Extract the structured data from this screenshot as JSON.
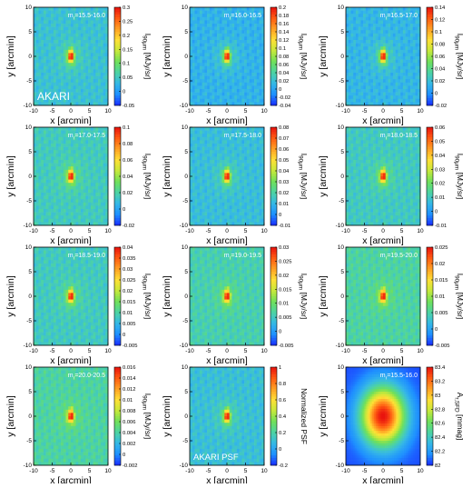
{
  "colormap": [
    "#1a2cff",
    "#1e90ff",
    "#35b8e6",
    "#4cd3a4",
    "#6fe05a",
    "#c6e83a",
    "#ffe036",
    "#ffa024",
    "#ff5a12",
    "#e8120e"
  ],
  "chart_data": [
    {
      "type": "heatmap",
      "title": "m_r=15.5-16.0",
      "note": "AKARI",
      "xlabel": "x [arcmin]",
      "ylabel": "y [arcmin]",
      "xlim": [
        -10,
        10
      ],
      "ylim": [
        -10,
        10
      ],
      "x_ticks": [
        "-10",
        "-5",
        "0",
        "5",
        "10"
      ],
      "y_ticks": [
        "-10",
        "-5",
        "0",
        "5",
        "10"
      ],
      "colorbar": {
        "label": "I_90μm [MJy/sr]",
        "range": [
          -0.05,
          0.3
        ],
        "ticks": [
          "0.3",
          "0.25",
          "0.2",
          "0.15",
          "0.1",
          "0.05",
          "0",
          "-0.05"
        ]
      },
      "background_level": 0.04,
      "peak": 0.3,
      "source_position": [
        0,
        0
      ]
    },
    {
      "type": "heatmap",
      "title": "m_r=16.0-16.5",
      "note": "",
      "xlabel": "x [arcmin]",
      "ylabel": "y [arcmin]",
      "xlim": [
        -10,
        10
      ],
      "ylim": [
        -10,
        10
      ],
      "x_ticks": [
        "-10",
        "-5",
        "0",
        "5",
        "10"
      ],
      "y_ticks": [
        "-10",
        "-5",
        "0",
        "5",
        "10"
      ],
      "colorbar": {
        "label": "I_90μm [MJy/sr]",
        "range": [
          -0.04,
          0.2
        ],
        "ticks": [
          "0.2",
          "0.18",
          "0.16",
          "0.14",
          "0.12",
          "0.1",
          "0.08",
          "0.06",
          "0.04",
          "0.02",
          "0",
          "-0.02",
          "-0.04"
        ]
      },
      "background_level": 0.01,
      "peak": 0.2,
      "source_position": [
        0,
        0
      ]
    },
    {
      "type": "heatmap",
      "title": "m_r=16.5-17.0",
      "note": "",
      "xlabel": "x [arcmin]",
      "ylabel": "y [arcmin]",
      "xlim": [
        -10,
        10
      ],
      "ylim": [
        -10,
        10
      ],
      "x_ticks": [
        "-10",
        "-5",
        "0",
        "5",
        "10"
      ],
      "y_ticks": [
        "-10",
        "-5",
        "0",
        "5",
        "10"
      ],
      "colorbar": {
        "label": "I_90μm [MJy/sr]",
        "range": [
          -0.02,
          0.14
        ],
        "ticks": [
          "0.14",
          "0.12",
          "0.1",
          "0.08",
          "0.06",
          "0.04",
          "0.02",
          "0",
          "-0.02"
        ]
      },
      "background_level": 0.015,
      "peak": 0.14,
      "source_position": [
        0,
        0
      ]
    },
    {
      "type": "heatmap",
      "title": "m_r=17.0-17.5",
      "note": "",
      "xlabel": "x [arcmin]",
      "ylabel": "y [arcmin]",
      "xlim": [
        -10,
        10
      ],
      "ylim": [
        -10,
        10
      ],
      "x_ticks": [
        "-10",
        "-5",
        "0",
        "5",
        "10"
      ],
      "y_ticks": [
        "-10",
        "-5",
        "0",
        "5",
        "10"
      ],
      "colorbar": {
        "label": "I_90μm [MJy/sr]",
        "range": [
          -0.02,
          0.1
        ],
        "ticks": [
          "0.1",
          "0.08",
          "0.06",
          "0.04",
          "0.02",
          "0",
          "-0.02"
        ]
      },
      "background_level": 0.015,
      "peak": 0.1,
      "source_position": [
        0,
        0
      ]
    },
    {
      "type": "heatmap",
      "title": "m_r=17.5-18.0",
      "note": "",
      "xlabel": "x [arcmin]",
      "ylabel": "y [arcmin]",
      "xlim": [
        -10,
        10
      ],
      "ylim": [
        -10,
        10
      ],
      "x_ticks": [
        "-10",
        "-5",
        "0",
        "5",
        "10"
      ],
      "y_ticks": [
        "-10",
        "-5",
        "0",
        "5",
        "10"
      ],
      "colorbar": {
        "label": "I_90μm [MJy/sr]",
        "range": [
          -0.01,
          0.08
        ],
        "ticks": [
          "0.08",
          "0.07",
          "0.06",
          "0.05",
          "0.04",
          "0.03",
          "0.02",
          "0.01",
          "0",
          "-0.01"
        ]
      },
      "background_level": 0.012,
      "peak": 0.08,
      "source_position": [
        0,
        0
      ]
    },
    {
      "type": "heatmap",
      "title": "m_r=18.0-18.5",
      "note": "",
      "xlabel": "x [arcmin]",
      "ylabel": "y [arcmin]",
      "xlim": [
        -10,
        10
      ],
      "ylim": [
        -10,
        10
      ],
      "x_ticks": [
        "-10",
        "-5",
        "0",
        "5",
        "10"
      ],
      "y_ticks": [
        "-10",
        "-5",
        "0",
        "5",
        "10"
      ],
      "colorbar": {
        "label": "I_90μm [MJy/sr]",
        "range": [
          -0.01,
          0.06
        ],
        "ticks": [
          "0.06",
          "0.05",
          "0.04",
          "0.03",
          "0.02",
          "0.01",
          "0",
          "-0.01"
        ]
      },
      "background_level": 0.01,
      "peak": 0.06,
      "source_position": [
        0,
        0
      ]
    },
    {
      "type": "heatmap",
      "title": "m_r=18.5-19.0",
      "note": "",
      "xlabel": "x [arcmin]",
      "ylabel": "y [arcmin]",
      "xlim": [
        -10,
        10
      ],
      "ylim": [
        -10,
        10
      ],
      "x_ticks": [
        "-10",
        "-5",
        "0",
        "5",
        "10"
      ],
      "y_ticks": [
        "-10",
        "-5",
        "0",
        "5",
        "10"
      ],
      "colorbar": {
        "label": "I_90μm [MJy/sr]",
        "range": [
          -0.005,
          0.04
        ],
        "ticks": [
          "0.04",
          "0.035",
          "0.03",
          "0.025",
          "0.02",
          "0.015",
          "0.01",
          "0.005",
          "0",
          "-0.005"
        ]
      },
      "background_level": 0.008,
      "peak": 0.04,
      "source_position": [
        0,
        0
      ]
    },
    {
      "type": "heatmap",
      "title": "m_r=19.0-19.5",
      "note": "",
      "xlabel": "x [arcmin]",
      "ylabel": "y [arcmin]",
      "xlim": [
        -10,
        10
      ],
      "ylim": [
        -10,
        10
      ],
      "x_ticks": [
        "-10",
        "-5",
        "0",
        "5",
        "10"
      ],
      "y_ticks": [
        "-10",
        "-5",
        "0",
        "5",
        "10"
      ],
      "colorbar": {
        "label": "I_90μm [MJy/sr]",
        "range": [
          -0.005,
          0.03
        ],
        "ticks": [
          "0.03",
          "0.025",
          "0.02",
          "0.015",
          "0.01",
          "0.005",
          "0",
          "-0.005"
        ]
      },
      "background_level": 0.006,
      "peak": 0.03,
      "source_position": [
        0,
        0
      ]
    },
    {
      "type": "heatmap",
      "title": "m_r=19.5-20.0",
      "note": "",
      "xlabel": "x [arcmin]",
      "ylabel": "y [arcmin]",
      "xlim": [
        -10,
        10
      ],
      "ylim": [
        -10,
        10
      ],
      "x_ticks": [
        "-10",
        "-5",
        "0",
        "5",
        "10"
      ],
      "y_ticks": [
        "-10",
        "-5",
        "0",
        "5",
        "10"
      ],
      "colorbar": {
        "label": "I_90μm [MJy/sr]",
        "range": [
          -0.005,
          0.025
        ],
        "ticks": [
          "0.025",
          "0.02",
          "0.015",
          "0.01",
          "0.005",
          "0",
          "-0.005"
        ]
      },
      "background_level": 0.005,
      "peak": 0.025,
      "source_position": [
        0,
        0
      ]
    },
    {
      "type": "heatmap",
      "title": "m_r=20.0-20.5",
      "note": "",
      "xlabel": "x [arcmin]",
      "ylabel": "y [arcmin]",
      "xlim": [
        -10,
        10
      ],
      "ylim": [
        -10,
        10
      ],
      "x_ticks": [
        "-10",
        "-5",
        "0",
        "5",
        "10"
      ],
      "y_ticks": [
        "-10",
        "-5",
        "0",
        "5",
        "10"
      ],
      "colorbar": {
        "label": "I_90μm [MJy/sr]",
        "range": [
          -0.002,
          0.016
        ],
        "ticks": [
          "0.016",
          "0.014",
          "0.012",
          "0.01",
          "0.008",
          "0.006",
          "0.004",
          "0.002",
          "0",
          "-0.002"
        ]
      },
      "background_level": 0.004,
      "peak": 0.016,
      "source_position": [
        0,
        0
      ]
    },
    {
      "type": "heatmap",
      "title": "",
      "note": "AKARI PSF",
      "xlabel": "x [arcmin]",
      "ylabel": "y [arcmin]",
      "xlim": [
        -10,
        10
      ],
      "ylim": [
        -10,
        10
      ],
      "x_ticks": [
        "-10",
        "-5",
        "0",
        "5",
        "10"
      ],
      "y_ticks": [
        "-10",
        "-5",
        "0",
        "5",
        "10"
      ],
      "colorbar": {
        "label": "Normalized PSF",
        "range": [
          -0.2,
          1
        ],
        "ticks": [
          "1",
          "0.8",
          "0.6",
          "0.4",
          "0.2",
          "0",
          "-0.2"
        ]
      },
      "background_level": 0.1,
      "peak": 1,
      "source_position": [
        0,
        0
      ]
    },
    {
      "type": "heatmap",
      "title": "m_r=15.5-16.0",
      "note": "",
      "xlabel": "x [arcmin]",
      "ylabel": "y [arcmin]",
      "xlim": [
        -10,
        10
      ],
      "ylim": [
        -10,
        10
      ],
      "x_ticks": [
        "-10",
        "-5",
        "0",
        "5",
        "10"
      ],
      "y_ticks": [
        "-10",
        "-5",
        "0",
        "5",
        "10"
      ],
      "colorbar": {
        "label": "A_r,SFD [mmag]",
        "range": [
          82,
          83.4
        ],
        "ticks": [
          "83.4",
          "83.2",
          "83",
          "82.8",
          "82.6",
          "82.4",
          "82.2",
          "82"
        ]
      },
      "background_level": 82.05,
      "peak": 83.4,
      "source_position": [
        0,
        0
      ]
    }
  ]
}
